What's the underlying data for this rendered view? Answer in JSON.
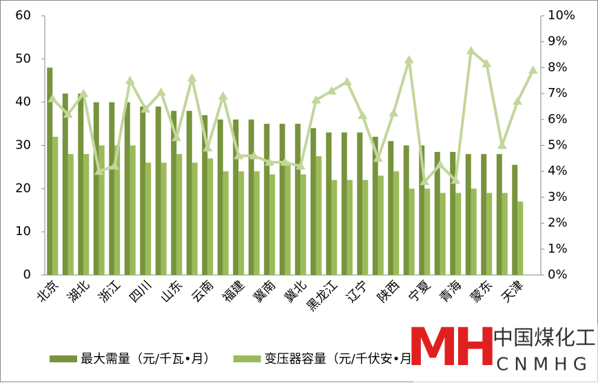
{
  "chart_data": {
    "type": "bar-line",
    "categories": [
      "北京",
      null,
      "湖北",
      null,
      "浙江",
      null,
      "四川",
      null,
      "山东",
      null,
      "云南",
      null,
      "福建",
      null,
      "冀南",
      null,
      "冀北",
      null,
      "黑龙江",
      null,
      "辽宁",
      null,
      "陕西",
      null,
      "宁夏",
      null,
      "青海",
      null,
      "蒙东",
      null,
      "天津",
      null
    ],
    "series": [
      {
        "name": "最大需量（元/千瓦•月）",
        "color": "#77933c",
        "type": "bar",
        "values": [
          48,
          42,
          42,
          40,
          40,
          40,
          39,
          39,
          38,
          38,
          37,
          36,
          36,
          36,
          35,
          35,
          35,
          34,
          33,
          33,
          33,
          32,
          31,
          30,
          30,
          28.5,
          28.5,
          28,
          28,
          28,
          25.5,
          null
        ]
      },
      {
        "name": "变压器容量（元/千伏安•月）",
        "color": "#9bbb59",
        "type": "bar",
        "values": [
          32,
          28,
          28,
          30,
          30,
          30,
          26,
          26,
          28,
          26,
          27,
          24,
          24,
          24,
          23.3,
          26,
          23.3,
          27.5,
          22,
          22,
          22,
          23,
          24,
          20,
          20,
          19,
          19,
          20,
          19,
          19,
          17,
          null
        ]
      },
      {
        "color": "#c3d69b",
        "type": "line",
        "axis": "y2",
        "values": [
          6.8,
          6.2,
          7.0,
          4.0,
          4.2,
          7.5,
          6.4,
          7.05,
          5.3,
          7.6,
          4.9,
          6.9,
          4.6,
          4.6,
          4.35,
          4.35,
          4.2,
          6.75,
          7.1,
          7.45,
          6.15,
          4.5,
          6.25,
          8.3,
          3.6,
          4.25,
          3.65,
          8.65,
          8.15,
          5.0,
          6.7,
          7.9
        ]
      }
    ],
    "ylim": [
      0,
      60
    ],
    "yticks": [
      0,
      10,
      20,
      30,
      40,
      50,
      60
    ],
    "y2lim": [
      0,
      10
    ],
    "y2ticks": [
      {
        "value": 0,
        "label": "0%"
      },
      {
        "value": 1,
        "label": "1%"
      },
      {
        "value": 2,
        "label": "2%"
      },
      {
        "value": 3,
        "label": "3%"
      },
      {
        "value": 4,
        "label": "4%"
      },
      {
        "value": 5,
        "label": "5%"
      },
      {
        "value": 6,
        "label": "6%"
      },
      {
        "value": 7,
        "label": "7%"
      },
      {
        "value": 8,
        "label": "8%"
      },
      {
        "value": 9,
        "label": "9%"
      },
      {
        "value": 10,
        "label": "10%"
      }
    ],
    "watermark": {
      "logo": "MH",
      "name": "中国煤化工",
      "code": "CNMHG"
    }
  }
}
